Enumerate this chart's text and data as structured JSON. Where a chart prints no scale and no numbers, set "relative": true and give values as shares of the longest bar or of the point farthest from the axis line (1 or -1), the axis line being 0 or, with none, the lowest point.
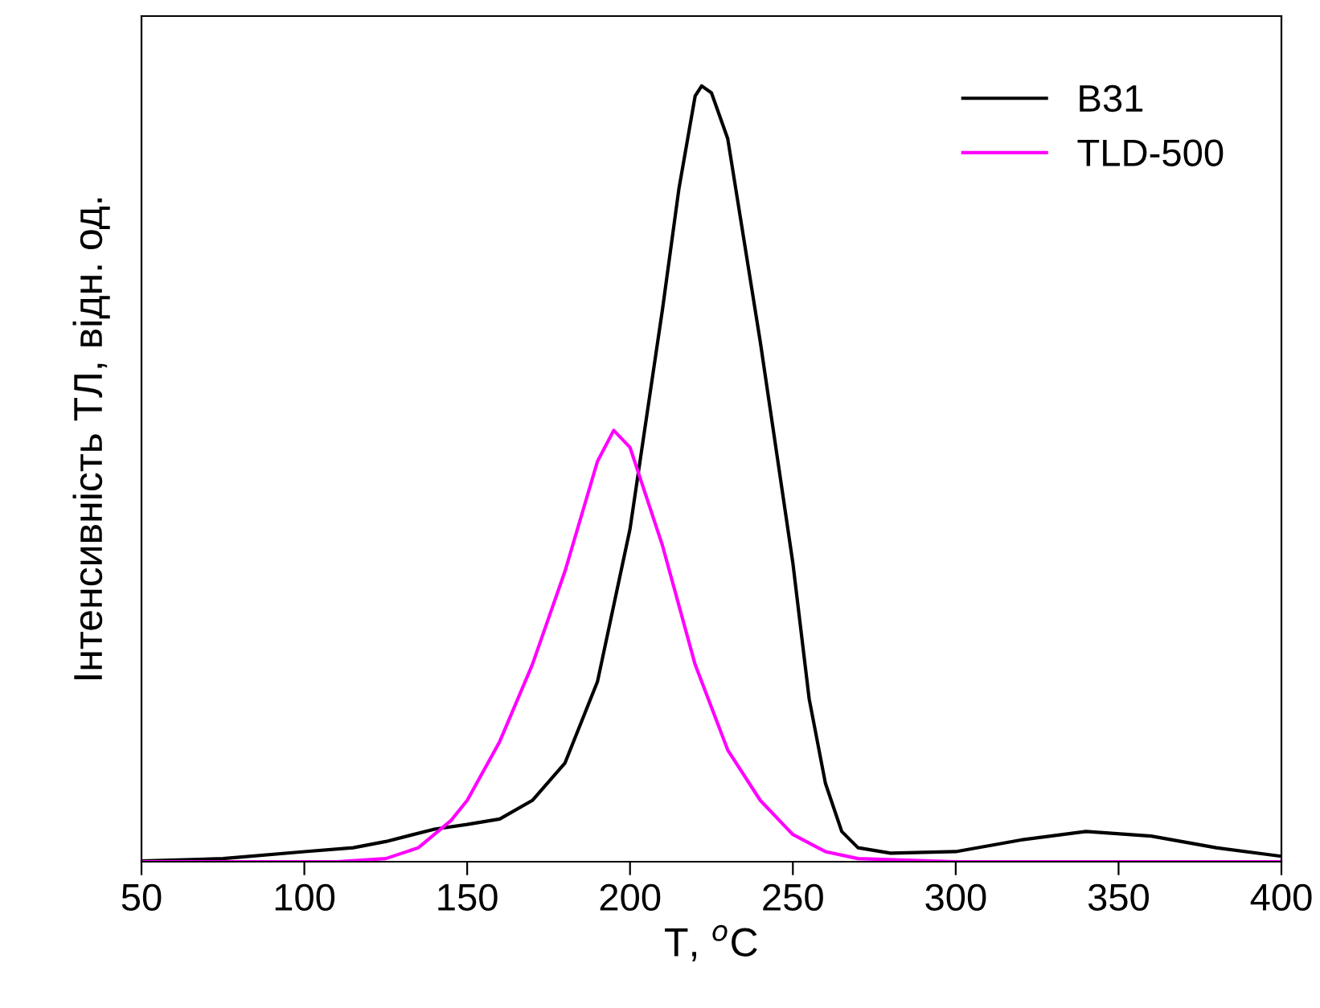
{
  "chart_data": {
    "type": "line",
    "relative": true,
    "xlabel": "T, $^{o}$C",
    "ylabel": "Інтенсивність ТЛ, відн. од.",
    "xlim": [
      50,
      400
    ],
    "xticks": [
      50,
      100,
      150,
      200,
      250,
      300,
      350,
      400
    ],
    "grid": false,
    "legend": "top right",
    "marker": "none",
    "line_style": "solid",
    "series": [
      {
        "name": "B31",
        "color": "#000000",
        "x": [
          50,
          75,
          100,
          115,
          125,
          140,
          150,
          160,
          170,
          180,
          190,
          200,
          210,
          215,
          220,
          222,
          225,
          230,
          240,
          250,
          255,
          260,
          265,
          270,
          280,
          300,
          320,
          340,
          360,
          380,
          400
        ],
        "values": [
          0.001,
          0.004,
          0.013,
          0.018,
          0.026,
          0.042,
          0.048,
          0.055,
          0.079,
          0.127,
          0.232,
          0.429,
          0.713,
          0.867,
          0.987,
          1,
          0.991,
          0.932,
          0.67,
          0.385,
          0.21,
          0.101,
          0.039,
          0.018,
          0.011,
          0.013,
          0.028,
          0.039,
          0.033,
          0.018,
          0.007
        ]
      },
      {
        "name": "TLD-500",
        "color": "#ff00ff",
        "x": [
          50,
          110,
          125,
          135,
          145,
          150,
          160,
          170,
          180,
          190,
          195,
          200,
          210,
          220,
          230,
          240,
          250,
          260,
          270,
          300,
          400
        ],
        "values": [
          0,
          0,
          0.004,
          0.018,
          0.053,
          0.079,
          0.155,
          0.254,
          0.374,
          0.516,
          0.556,
          0.534,
          0.407,
          0.254,
          0.144,
          0.079,
          0.035,
          0.013,
          0.004,
          0,
          0
        ]
      }
    ]
  }
}
